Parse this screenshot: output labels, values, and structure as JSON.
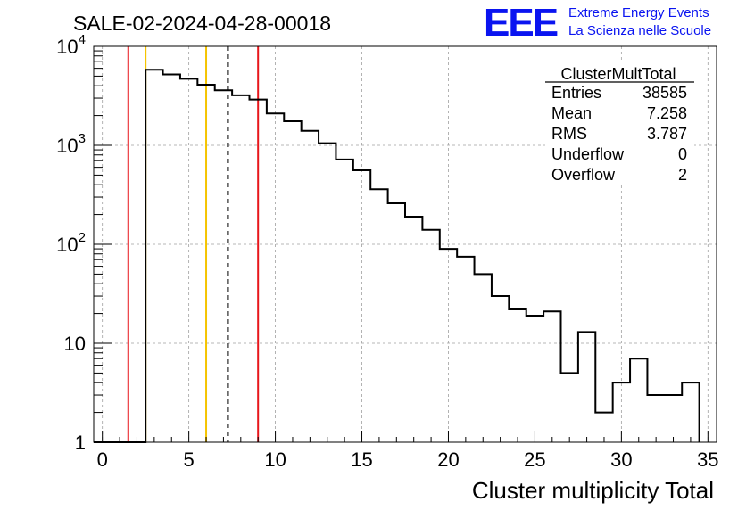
{
  "header": {
    "run_title": "SALE-02-2024-04-28-00018",
    "logo_text": "EEE",
    "project_line1": "Extreme Energy Events",
    "project_line2": "La Scienza nelle Scuole"
  },
  "colors": {
    "background": "#ffffff",
    "histogram": "#000000",
    "grid": "#a0a0a0",
    "red_lines": "#e8161b",
    "yellow_lines": "#f5c400",
    "mean_line": "#000000",
    "logo_blue": "#0a14f0"
  },
  "stats_box": {
    "title": "ClusterMultTotal",
    "rows": [
      {
        "label": "Entries",
        "value": "38585"
      },
      {
        "label": "Mean",
        "value": "7.258"
      },
      {
        "label": "RMS",
        "value": "3.787"
      },
      {
        "label": "Underflow",
        "value": "0"
      },
      {
        "label": "Overflow",
        "value": "2"
      }
    ]
  },
  "chart_data": {
    "type": "bar",
    "histogram_style": "step",
    "title": "SALE-02-2024-04-28-00018",
    "xlabel": "Cluster multiplicity Total",
    "ylabel": "",
    "xlim": [
      -0.5,
      35.5
    ],
    "ylim": [
      1,
      10000
    ],
    "y_scale": "log",
    "grid": true,
    "bin_width": 1,
    "bin_centers": [
      0,
      1,
      2,
      3,
      4,
      5,
      6,
      7,
      8,
      9,
      10,
      11,
      12,
      13,
      14,
      15,
      16,
      17,
      18,
      19,
      20,
      21,
      22,
      23,
      24,
      25,
      26,
      27,
      28,
      29,
      30,
      31,
      32,
      33,
      34
    ],
    "values": [
      0,
      0,
      0,
      5800,
      5200,
      4700,
      4100,
      3600,
      3200,
      2900,
      2100,
      1750,
      1400,
      1050,
      720,
      560,
      360,
      260,
      190,
      140,
      90,
      75,
      50,
      30,
      22,
      19,
      21,
      5,
      13,
      2,
      4,
      7,
      3,
      3,
      4
    ],
    "x_ticks": [
      "0",
      "5",
      "10",
      "15",
      "20",
      "25",
      "30",
      "35"
    ],
    "y_ticks": [
      "1",
      "10",
      "10^2",
      "10^3",
      "10^4"
    ],
    "vertical_lines": [
      {
        "x": 1.5,
        "color": "red",
        "style": "solid"
      },
      {
        "x": 2.5,
        "color": "yellow",
        "style": "solid"
      },
      {
        "x": 6.0,
        "color": "yellow",
        "style": "solid"
      },
      {
        "x": 7.258,
        "color": "black",
        "style": "dashed"
      },
      {
        "x": 9.0,
        "color": "red",
        "style": "solid"
      }
    ],
    "legend": "top-right"
  }
}
